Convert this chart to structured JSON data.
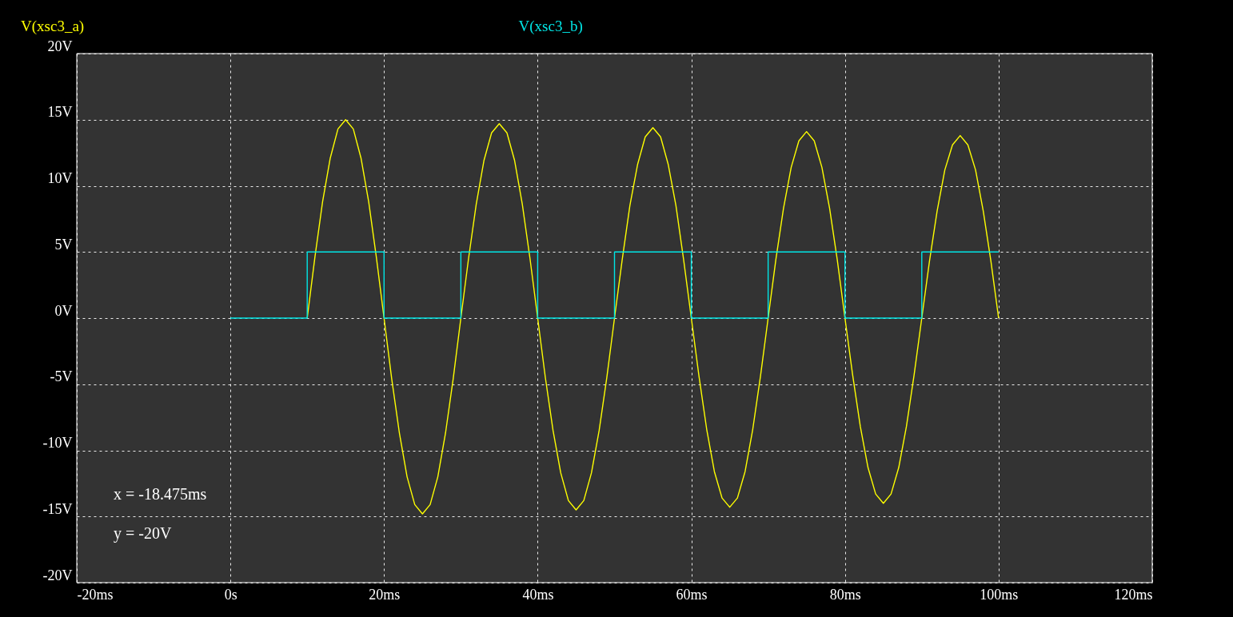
{
  "chart_data": {
    "type": "line",
    "xlim": [
      -20,
      120
    ],
    "xticks": [
      {
        "value": -20,
        "label": "-20ms"
      },
      {
        "value": 0,
        "label": "0s"
      },
      {
        "value": 20,
        "label": "20ms"
      },
      {
        "value": 40,
        "label": "40ms"
      },
      {
        "value": 60,
        "label": "60ms"
      },
      {
        "value": 80,
        "label": "80ms"
      },
      {
        "value": 100,
        "label": "100ms"
      },
      {
        "value": 120,
        "label": "120ms"
      }
    ],
    "ylim": [
      -20,
      20
    ],
    "yticks": [
      {
        "value": -20,
        "label": "-20V"
      },
      {
        "value": -15,
        "label": "-15V"
      },
      {
        "value": -10,
        "label": "-10V"
      },
      {
        "value": -5,
        "label": "-5V"
      },
      {
        "value": 0,
        "label": "0V"
      },
      {
        "value": 5,
        "label": "5V"
      },
      {
        "value": 10,
        "label": "10V"
      },
      {
        "value": 15,
        "label": "15V"
      },
      {
        "value": 20,
        "label": "20V"
      }
    ],
    "grid": true,
    "legend": "top",
    "line_style": "solid",
    "marker": "none",
    "annotations": [
      "x = -18.475ms",
      "y = -20V"
    ],
    "series": [
      {
        "name": "V(xsc3_a)",
        "color": "#ffff00",
        "x": [
          10,
          11,
          12,
          13,
          14,
          15,
          16,
          17,
          18,
          19,
          20,
          21,
          22,
          23,
          24,
          25,
          26,
          27,
          28,
          29,
          30,
          31,
          32,
          33,
          34,
          35,
          36,
          37,
          38,
          39,
          40,
          41,
          42,
          43,
          44,
          45,
          46,
          47,
          48,
          49,
          50,
          51,
          52,
          53,
          54,
          55,
          56,
          57,
          58,
          59,
          60,
          61,
          62,
          63,
          64,
          65,
          66,
          67,
          68,
          69,
          70,
          71,
          72,
          73,
          74,
          75,
          76,
          77,
          78,
          79,
          80,
          81,
          82,
          83,
          84,
          85,
          86,
          87,
          88,
          89,
          90,
          91,
          92,
          93,
          94,
          95,
          96,
          97,
          98,
          99,
          100
        ],
        "values": [
          0,
          4.6,
          8.8,
          12.1,
          14.3,
          15.0,
          14.3,
          12.1,
          8.8,
          4.6,
          0,
          -4.6,
          -8.7,
          -12.0,
          -14.1,
          -14.8,
          -14.1,
          -12.0,
          -8.7,
          -4.6,
          0,
          4.5,
          8.6,
          11.9,
          14.0,
          14.7,
          14.0,
          11.9,
          8.6,
          4.5,
          0,
          -4.5,
          -8.5,
          -11.7,
          -13.8,
          -14.5,
          -13.8,
          -11.7,
          -8.5,
          -4.5,
          0,
          4.4,
          8.5,
          11.6,
          13.7,
          14.4,
          13.7,
          11.6,
          8.5,
          4.4,
          0,
          -4.4,
          -8.4,
          -11.6,
          -13.6,
          -14.3,
          -13.6,
          -11.6,
          -8.4,
          -4.4,
          0,
          4.4,
          8.3,
          11.4,
          13.4,
          14.1,
          13.4,
          11.4,
          8.3,
          4.4,
          0,
          -4.3,
          -8.2,
          -11.3,
          -13.3,
          -14.0,
          -13.3,
          -11.3,
          -8.2,
          -4.3,
          0,
          4.3,
          8.1,
          11.2,
          13.1,
          13.8,
          13.1,
          11.2,
          8.1,
          4.3,
          0
        ]
      },
      {
        "name": "V(xsc3_b)",
        "color": "#00e5e5",
        "x": [
          0,
          10,
          10,
          20,
          20,
          30,
          30,
          40,
          40,
          50,
          50,
          60,
          60,
          70,
          70,
          80,
          80,
          90,
          90,
          100
        ],
        "values": [
          0,
          0,
          5,
          5,
          0,
          0,
          5,
          5,
          0,
          0,
          5,
          5,
          0,
          0,
          5,
          5,
          0,
          0,
          5,
          5
        ]
      }
    ]
  }
}
